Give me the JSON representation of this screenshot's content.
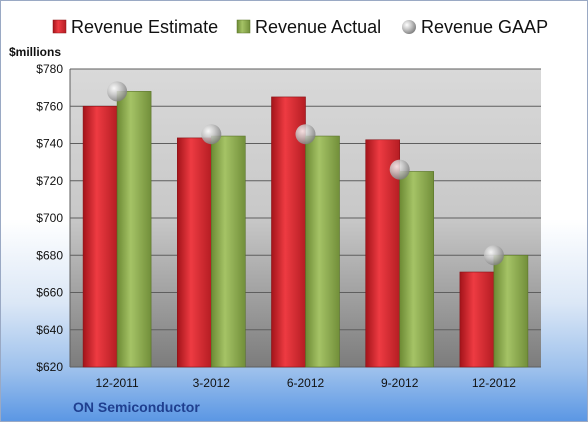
{
  "chart_data": {
    "type": "bar",
    "title": "",
    "unit_label": "$millions",
    "company": "ON Semiconductor",
    "categories": [
      "12-2011",
      "3-2012",
      "6-2012",
      "9-2012",
      "12-2012"
    ],
    "series": [
      {
        "name": "Revenue Estimate",
        "type": "bar",
        "color": "#d8262d",
        "values": [
          760,
          743,
          765,
          742,
          671
        ]
      },
      {
        "name": "Revenue Actual",
        "type": "bar",
        "color": "#8fb04d",
        "values": [
          768,
          744,
          744,
          725,
          680
        ]
      },
      {
        "name": "Revenue GAAP",
        "type": "marker",
        "color": "#b8b8b8",
        "values": [
          768,
          745,
          745,
          726,
          680
        ]
      }
    ],
    "ylim": [
      620,
      780
    ],
    "yticks": [
      "$620",
      "$640",
      "$660",
      "$680",
      "$700",
      "$720",
      "$740",
      "$760",
      "$780"
    ],
    "grid": true,
    "legend_position": "top"
  }
}
